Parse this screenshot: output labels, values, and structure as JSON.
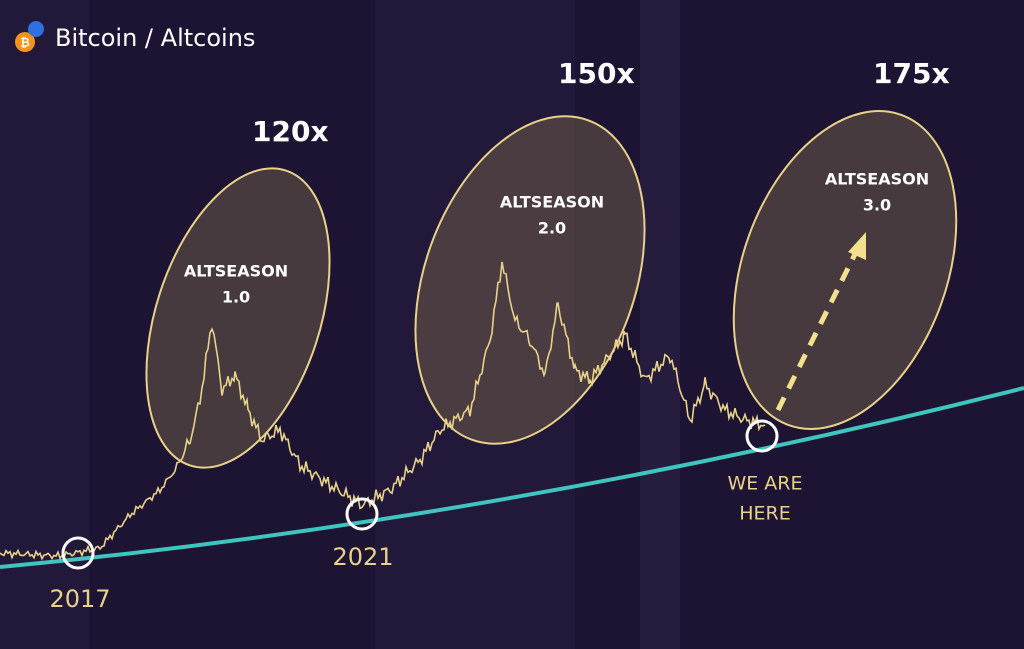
{
  "header": {
    "title": "Bitcoin / Altcoins"
  },
  "seasons": [
    {
      "multiplier": "120x",
      "name": "ALTSEASON",
      "version": "1.0"
    },
    {
      "multiplier": "150x",
      "name": "ALTSEASON",
      "version": "2.0"
    },
    {
      "multiplier": "175x",
      "name": "ALTSEASON",
      "version": "3.0"
    }
  ],
  "markers": [
    {
      "label": "2017"
    },
    {
      "label": "2021"
    },
    {
      "label_lines": [
        "WE ARE",
        "HERE"
      ]
    }
  ]
}
